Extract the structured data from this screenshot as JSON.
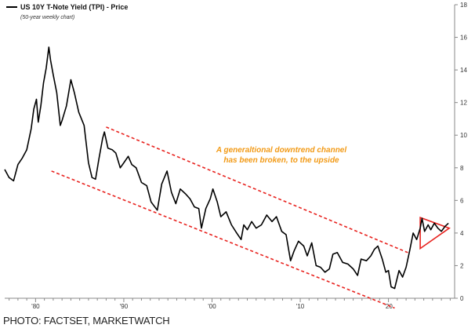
{
  "credit": "PHOTO: FACTSET, MARKETWATCH",
  "chart_data": {
    "type": "line",
    "title": "US 10Y T-Note Yield (TPI) - Price",
    "subtitle": "(50-year weekly chart)",
    "annotation_lines": [
      "A generaltional downtrend channel",
      "has been broken, to the upside"
    ],
    "x_tick_labels": [
      "'80",
      "'90",
      "'00",
      "'10",
      "'20"
    ],
    "x_tick_years": [
      1980,
      1990,
      2000,
      2010,
      2020
    ],
    "xlim": [
      1976.5,
      2027.5
    ],
    "ylim": [
      0,
      18
    ],
    "y_ticks": [
      0,
      2,
      4,
      6,
      8,
      10,
      12,
      14,
      16,
      18
    ],
    "grid": false,
    "legend": "top-left",
    "colors": {
      "line": "#000000",
      "channel": "#e8231f",
      "annotation": "#f29a16",
      "triangle": "#e8231f"
    },
    "series": [
      {
        "name": "US 10Y T-Note Yield (TPI) - Price",
        "x": [
          1976.5,
          1977.0,
          1977.5,
          1978.0,
          1978.5,
          1979.0,
          1979.5,
          1979.8,
          1980.1,
          1980.3,
          1980.6,
          1980.9,
          1981.2,
          1981.5,
          1981.7,
          1982.0,
          1982.4,
          1982.8,
          1983.0,
          1983.5,
          1984.0,
          1984.4,
          1984.9,
          1985.5,
          1986.0,
          1986.4,
          1986.8,
          1987.2,
          1987.6,
          1987.8,
          1988.2,
          1988.7,
          1989.1,
          1989.6,
          1990.0,
          1990.5,
          1990.9,
          1991.4,
          1992.0,
          1992.6,
          1993.1,
          1993.8,
          1994.3,
          1994.9,
          1995.4,
          1995.9,
          1996.4,
          1997.0,
          1997.5,
          1998.0,
          1998.5,
          1998.8,
          1999.3,
          1999.8,
          2000.1,
          2000.6,
          2001.0,
          2001.6,
          2002.2,
          2002.8,
          2003.3,
          2003.6,
          2004.0,
          2004.5,
          2005.0,
          2005.6,
          2006.2,
          2006.8,
          2007.3,
          2007.9,
          2008.4,
          2008.9,
          2009.3,
          2009.8,
          2010.4,
          2010.8,
          2011.3,
          2011.8,
          2012.3,
          2012.8,
          2013.3,
          2013.7,
          2014.2,
          2014.8,
          2015.4,
          2016.0,
          2016.5,
          2016.9,
          2017.5,
          2018.0,
          2018.4,
          2018.8,
          2019.3,
          2019.7,
          2020.0,
          2020.3,
          2020.7,
          2021.2,
          2021.6,
          2022.0,
          2022.4,
          2022.8,
          2023.2,
          2023.6,
          2023.8,
          2024.1,
          2024.5,
          2024.8,
          2025.2,
          2025.6,
          2026.0,
          2026.4,
          2026.8
        ],
        "y": [
          7.9,
          7.4,
          7.2,
          8.2,
          8.6,
          9.1,
          10.4,
          11.6,
          12.2,
          10.8,
          11.8,
          13.2,
          14.1,
          15.4,
          14.6,
          13.7,
          12.6,
          10.6,
          10.9,
          11.8,
          13.4,
          12.6,
          11.4,
          10.6,
          8.3,
          7.4,
          7.3,
          8.6,
          9.8,
          10.2,
          9.2,
          9.1,
          8.9,
          8.0,
          8.3,
          8.7,
          8.2,
          8.0,
          7.1,
          6.9,
          5.9,
          5.4,
          7.0,
          7.8,
          6.5,
          5.8,
          6.7,
          6.4,
          6.1,
          5.6,
          5.5,
          4.3,
          5.5,
          6.1,
          6.7,
          5.9,
          5.0,
          5.3,
          4.5,
          4.0,
          3.6,
          4.5,
          4.2,
          4.7,
          4.3,
          4.5,
          5.1,
          4.7,
          5.0,
          4.1,
          3.9,
          2.3,
          2.9,
          3.5,
          3.2,
          2.6,
          3.4,
          2.0,
          1.9,
          1.6,
          1.8,
          2.7,
          2.8,
          2.2,
          2.1,
          1.8,
          1.4,
          2.4,
          2.3,
          2.6,
          3.0,
          3.2,
          2.4,
          1.6,
          1.7,
          0.7,
          0.6,
          1.7,
          1.3,
          1.9,
          2.9,
          4.0,
          3.6,
          4.3,
          4.9,
          4.1,
          4.5,
          4.2,
          4.6,
          4.3,
          4.1,
          4.4,
          4.6
        ]
      }
    ],
    "channel_upper": {
      "x": [
        1988.0,
        2022.2
      ],
      "y": [
        10.5,
        2.8
      ]
    },
    "channel_lower": {
      "x": [
        1981.8,
        2020.7
      ],
      "y": [
        7.8,
        -0.6
      ]
    },
    "triangle": {
      "x": [
        2023.6,
        2026.9,
        2023.6
      ],
      "y": [
        4.95,
        4.3,
        3.05
      ]
    }
  }
}
